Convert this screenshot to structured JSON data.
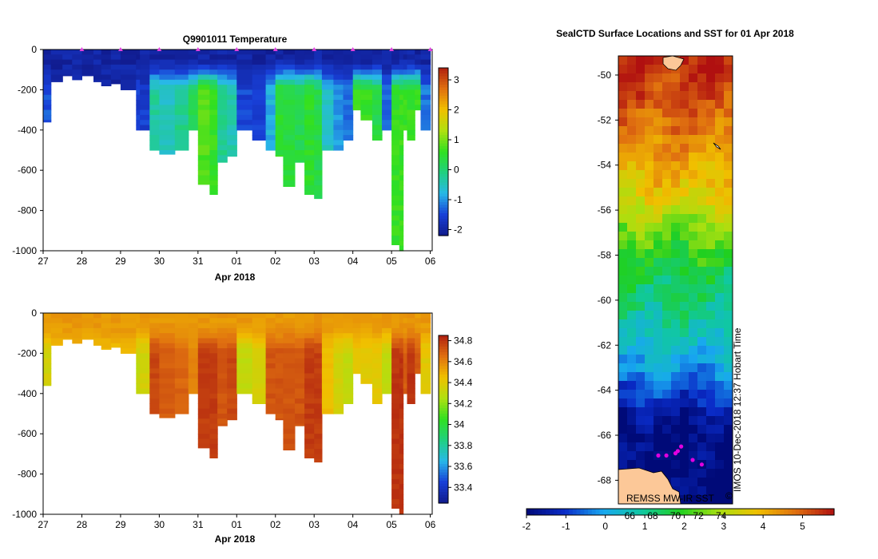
{
  "chart_data": [
    {
      "type": "heatmap",
      "title": "Q9901011  Temperature",
      "xlabel": "Apr 2018",
      "ylabel": "",
      "x_tick_labels": [
        "27",
        "28",
        "29",
        "30",
        "31",
        "01",
        "02",
        "03",
        "04",
        "05",
        "06"
      ],
      "x_tick_days": [
        27,
        28,
        29,
        30,
        31,
        32,
        33,
        34,
        35,
        36,
        37
      ],
      "xlim": [
        27,
        37.05
      ],
      "y_tick_labels": [
        "0",
        "-200",
        "-400",
        "-600",
        "-800",
        "-1000"
      ],
      "y_tick_values": [
        0,
        -200,
        -400,
        -600,
        -800,
        -1000
      ],
      "ylim": [
        -1000,
        0
      ],
      "colorbar": {
        "range": [
          -2.2,
          3.4
        ],
        "tick_labels": [
          "3",
          "2",
          "1",
          "0",
          "-1",
          "-2"
        ],
        "tick_values": [
          3,
          2,
          1,
          0,
          -1,
          -2
        ],
        "colors": [
          "#101a8c",
          "#1840d8",
          "#28b8e8",
          "#20d080",
          "#30e020",
          "#b0e010",
          "#f0c000",
          "#e07010",
          "#b02010"
        ]
      },
      "profile_day_starts": [
        27.0,
        27.2,
        27.5,
        27.75,
        28.0,
        28.3,
        28.5,
        28.75,
        29.0,
        29.4,
        29.5,
        29.75,
        30.0,
        30.4,
        30.75,
        31.0,
        31.3,
        31.5,
        31.75,
        32.0,
        32.4,
        32.75,
        33.0,
        33.2,
        33.5,
        33.75,
        34.0,
        34.2,
        34.5,
        34.75,
        35.0,
        35.2,
        35.5,
        35.75,
        36.0,
        36.2,
        36.3,
        36.4,
        36.6,
        36.75
      ],
      "profile_day_ends": [
        27.2,
        27.5,
        27.75,
        28.0,
        28.3,
        28.5,
        28.75,
        29.0,
        29.4,
        29.5,
        29.75,
        30.0,
        30.4,
        30.75,
        31.0,
        31.3,
        31.5,
        31.75,
        32.0,
        32.4,
        32.75,
        33.0,
        33.2,
        33.5,
        33.75,
        34.0,
        34.2,
        34.5,
        34.75,
        35.0,
        35.2,
        35.5,
        35.75,
        36.0,
        36.2,
        36.3,
        36.4,
        36.6,
        36.75,
        37.0
      ],
      "profile_max_depths": [
        -360,
        -160,
        -130,
        -150,
        -130,
        -160,
        -180,
        -170,
        -200,
        -400,
        -400,
        -500,
        -520,
        -500,
        -400,
        -670,
        -720,
        -560,
        -530,
        -400,
        -450,
        -500,
        -530,
        -680,
        -560,
        -720,
        -740,
        -500,
        -500,
        -450,
        -300,
        -350,
        -450,
        -400,
        -970,
        -1000,
        -400,
        -450,
        -300,
        -400
      ],
      "profile_surface_temps": [
        -2,
        -2,
        -2,
        -2,
        -2,
        -2,
        -2,
        -2,
        -2,
        -2,
        -2,
        -2,
        -2,
        -2,
        -2,
        -2,
        -2,
        -2,
        -2,
        -2,
        -2,
        -2,
        -2,
        -2,
        -2,
        -2,
        -2,
        -2,
        -2,
        -2,
        -2,
        -2,
        -2,
        -2,
        -2,
        -2,
        -2,
        -2,
        -2,
        -2
      ],
      "profile_deep_temps": [
        -1.4,
        -2,
        -2,
        -2,
        -2,
        -2,
        -2,
        -2,
        -2,
        -1.6,
        -1.6,
        -0.3,
        -0.5,
        -0.2,
        0.2,
        0.8,
        0.6,
        -0.2,
        -0.4,
        -1.5,
        -1.6,
        -0.8,
        0.5,
        0.4,
        0.3,
        0.5,
        0.3,
        -0.6,
        -1.0,
        -1.2,
        0.6,
        0.6,
        0.3,
        -1.2,
        0.6,
        0.6,
        0.6,
        0.6,
        0.6,
        -1.2
      ],
      "markers": {
        "type": "scatter",
        "symbol": "triangle",
        "color": "#e040e0",
        "x_days": [
          28,
          29,
          30,
          31,
          32,
          33,
          34,
          35,
          36,
          37
        ],
        "y": [
          0,
          0,
          0,
          0,
          0,
          0,
          0,
          0,
          0,
          0
        ]
      }
    },
    {
      "type": "heatmap",
      "title": "",
      "xlabel": "Apr 2018",
      "ylabel": "",
      "x_tick_labels": [
        "27",
        "28",
        "29",
        "30",
        "31",
        "01",
        "02",
        "03",
        "04",
        "05",
        "06"
      ],
      "x_tick_days": [
        27,
        28,
        29,
        30,
        31,
        32,
        33,
        34,
        35,
        36,
        37
      ],
      "xlim": [
        27,
        37.05
      ],
      "y_tick_labels": [
        "0",
        "-200",
        "-400",
        "-600",
        "-800",
        "-1000"
      ],
      "y_tick_values": [
        0,
        -200,
        -400,
        -600,
        -800,
        -1000
      ],
      "ylim": [
        -1000,
        0
      ],
      "colorbar": {
        "range": [
          33.25,
          34.85
        ],
        "tick_labels": [
          "34.8",
          "34.6",
          "34.4",
          "34.2",
          "34",
          "33.8",
          "33.6",
          "33.4"
        ],
        "tick_values": [
          34.8,
          34.6,
          34.4,
          34.2,
          34.0,
          33.8,
          33.6,
          33.4
        ],
        "colors": [
          "#101a8c",
          "#1840d8",
          "#28b8e8",
          "#20d080",
          "#30e020",
          "#b0e010",
          "#f0c000",
          "#e07010",
          "#b02010"
        ]
      },
      "profile_surface_vals": [
        34.55,
        34.55,
        34.55,
        34.55,
        34.55,
        34.55,
        34.55,
        34.55,
        34.55,
        34.55,
        34.55,
        34.55,
        34.55,
        34.55,
        34.55,
        34.55,
        34.55,
        34.55,
        34.55,
        34.55,
        34.55,
        34.55,
        34.55,
        34.55,
        34.55,
        34.55,
        34.55,
        34.55,
        34.55,
        34.55,
        34.55,
        34.55,
        34.55,
        34.55,
        34.55,
        34.55,
        34.55,
        34.55,
        34.55,
        34.55
      ],
      "profile_deep_vals": [
        34.35,
        34.45,
        34.45,
        34.45,
        34.45,
        34.45,
        34.45,
        34.45,
        34.45,
        34.3,
        34.35,
        34.75,
        34.7,
        34.68,
        34.6,
        34.78,
        34.78,
        34.72,
        34.75,
        34.3,
        34.35,
        34.72,
        34.72,
        34.72,
        34.72,
        34.78,
        34.78,
        34.45,
        34.35,
        34.3,
        34.4,
        34.4,
        34.4,
        34.3,
        34.8,
        34.8,
        34.7,
        34.8,
        34.7,
        34.4
      ]
    },
    {
      "type": "heatmap",
      "title": "SealCTD Surface Locations and SST for 01 Apr 2018",
      "xlabel": "",
      "ylabel": "",
      "y_tick_labels": [
        "-50",
        "-52",
        "-54",
        "-56",
        "-58",
        "-60",
        "-62",
        "-64",
        "-66",
        "-68"
      ],
      "y_tick_values": [
        -50,
        -52,
        -54,
        -56,
        -58,
        -60,
        -62,
        -64,
        -66,
        -68
      ],
      "ylim": [
        -69.05,
        -49.15
      ],
      "x_tick_labels": [
        "66",
        "68",
        "70",
        "72",
        "74"
      ],
      "x_tick_values": [
        66,
        68,
        70,
        72,
        74
      ],
      "xlim": [
        65,
        75
      ],
      "sst_latitudes": [
        -49.5,
        -51,
        -53,
        -55,
        -56,
        -57,
        -58.5,
        -60.5,
        -62,
        -63.5,
        -64.5,
        -65.5,
        -67,
        -69
      ],
      "sst_values": [
        5.6,
        5.2,
        4.5,
        3.8,
        3.1,
        2.4,
        1.7,
        1.1,
        0.5,
        -0.4,
        -1.2,
        -1.8,
        -2,
        -2
      ],
      "land_label": "",
      "colorbar": {
        "range": [
          -2,
          5.8
        ],
        "tick_labels": [
          "-2",
          "-1",
          "0",
          "1",
          "2",
          "3",
          "4",
          "5"
        ],
        "tick_values": [
          -2,
          -1,
          0,
          1,
          2,
          3,
          4,
          5
        ],
        "colors": [
          "#000a78",
          "#0a2cc8",
          "#18a8f0",
          "#10c8a0",
          "#20d020",
          "#a8e010",
          "#f0c000",
          "#e07010",
          "#b01010"
        ]
      },
      "seal_points": {
        "type": "scatter",
        "color": "#e000e0",
        "lon": [
          68.5,
          69.2,
          70.0,
          70.2,
          70.5,
          71.5,
          72.3
        ],
        "lat": [
          -66.9,
          -66.9,
          -66.8,
          -66.7,
          -66.5,
          -67.1,
          -67.3
        ]
      },
      "credit_text": "REMSS MW-IR SST",
      "side_text": "IMOS 10-Dec-2018 12:37 Hobart Time",
      "copyright_symbol": "©"
    }
  ]
}
